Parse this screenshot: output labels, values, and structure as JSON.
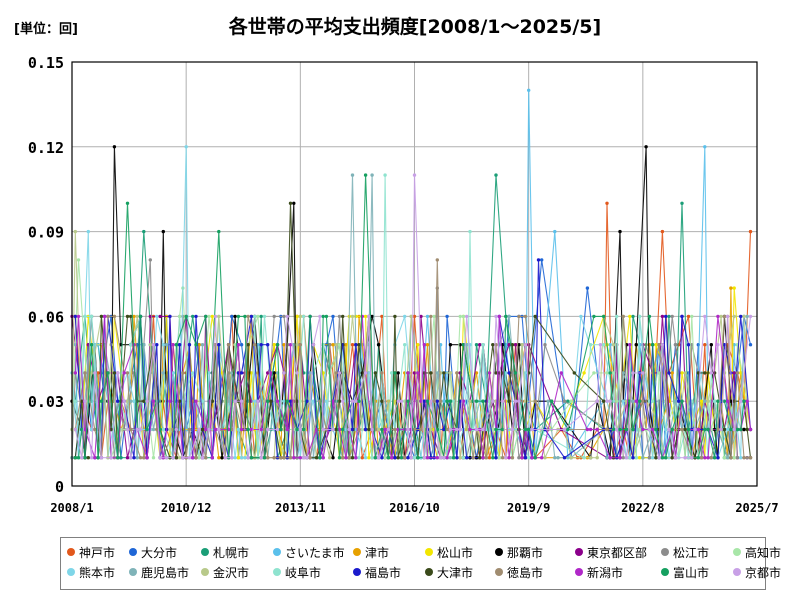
{
  "header": {
    "unit_label": "[単位：回]",
    "title": "各世帯の平均支出頻度[2008/1～2025/5]"
  },
  "chart_data": {
    "type": "line",
    "title": "各世帯の平均支出頻度[2008/1～2025/5]",
    "xlabel": "",
    "ylabel": "[単位：回]",
    "x_range": [
      "2008/1",
      "2025/7"
    ],
    "x_ticks": [
      "2008/1",
      "2010/12",
      "2013/11",
      "2016/10",
      "2019/9",
      "2022/8",
      "2025/7"
    ],
    "ylim": [
      0,
      0.15
    ],
    "y_ticks": [
      "0",
      "0.03",
      "0.06",
      "0.09",
      "0.12",
      "0.15"
    ],
    "grid": true,
    "legend_position": "bottom",
    "series": [
      {
        "name": "神戸市",
        "color": "#e2581c",
        "highlights": [
          [
            "2021/9",
            0.1
          ],
          [
            "2023/2",
            0.09
          ],
          [
            "2025/5",
            0.09
          ]
        ]
      },
      {
        "name": "大分市",
        "color": "#1f66d6",
        "highlights": [
          [
            "2020/1",
            0.08
          ],
          [
            "2021/3",
            0.07
          ]
        ]
      },
      {
        "name": "札幌市",
        "color": "#1b9e77",
        "highlights": [
          [
            "2009/11",
            0.09
          ],
          [
            "2018/11",
            0.11
          ],
          [
            "2023/8",
            0.1
          ]
        ]
      },
      {
        "name": "さいたま市",
        "color": "#5bc0eb",
        "highlights": [
          [
            "2019/9",
            0.14
          ],
          [
            "2020/5",
            0.09
          ],
          [
            "2024/3",
            0.12
          ]
        ]
      },
      {
        "name": "津市",
        "color": "#e6a100",
        "highlights": [
          [
            "2012/8",
            0.06
          ],
          [
            "2024/11",
            0.07
          ]
        ]
      },
      {
        "name": "松山市",
        "color": "#f2e600",
        "highlights": [
          [
            "2013/10",
            0.06
          ],
          [
            "2016/11",
            0.05
          ],
          [
            "2024/12",
            0.07
          ]
        ]
      },
      {
        "name": "那覇市",
        "color": "#000000",
        "highlights": [
          [
            "2009/2",
            0.12
          ],
          [
            "2022/9",
            0.12
          ],
          [
            "2013/9",
            0.1
          ],
          [
            "2010/5",
            0.09
          ],
          [
            "2022/1",
            0.09
          ]
        ]
      },
      {
        "name": "東京都区部",
        "color": "#8b008b",
        "highlights": [
          [
            "2013/6",
            0.04
          ]
        ]
      },
      {
        "name": "松江市",
        "color": "#8c8c8c",
        "highlights": [
          [
            "2010/1",
            0.08
          ],
          [
            "2017/5",
            0.07
          ]
        ]
      },
      {
        "name": "高知市",
        "color": "#a8e6a8",
        "highlights": [
          [
            "2008/3",
            0.08
          ],
          [
            "2010/11",
            0.07
          ]
        ]
      },
      {
        "name": "熊本市",
        "color": "#7fd6e8",
        "highlights": [
          [
            "2010/12",
            0.12
          ],
          [
            "2008/6",
            0.09
          ]
        ]
      },
      {
        "name": "鹿児島市",
        "color": "#7fb3b8",
        "highlights": [
          [
            "2015/3",
            0.11
          ],
          [
            "2015/9",
            0.11
          ]
        ]
      },
      {
        "name": "金沢市",
        "color": "#b8c98a",
        "highlights": [
          [
            "2008/2",
            0.09
          ]
        ]
      },
      {
        "name": "岐阜市",
        "color": "#8fe3cf",
        "highlights": [
          [
            "2016/1",
            0.11
          ],
          [
            "2018/3",
            0.09
          ]
        ]
      },
      {
        "name": "福島市",
        "color": "#1a1acc",
        "highlights": [
          [
            "2014/2",
            0.06
          ],
          [
            "2019/12",
            0.08
          ]
        ]
      },
      {
        "name": "大津市",
        "color": "#3a4a1a",
        "highlights": [
          [
            "2013/8",
            0.1
          ]
        ]
      },
      {
        "name": "徳島市",
        "color": "#a08c70",
        "highlights": [
          [
            "2017/5",
            0.08
          ]
        ]
      },
      {
        "name": "新潟市",
        "color": "#b028c8",
        "highlights": [
          [
            "2016/8",
            0.04
          ]
        ]
      },
      {
        "name": "富山市",
        "color": "#15a060",
        "highlights": [
          [
            "2015/7",
            0.11
          ],
          [
            "2009/6",
            0.1
          ],
          [
            "2011/10",
            0.09
          ]
        ]
      },
      {
        "name": "京都市",
        "color": "#c8a0e6",
        "highlights": [
          [
            "2016/10",
            0.11
          ]
        ]
      }
    ],
    "note": "Each series is a dense monthly line (2008/1–2025/5) whose values mostly lie between 0.01 and 0.06; the listed highlights are the values that stand out as peaks."
  }
}
